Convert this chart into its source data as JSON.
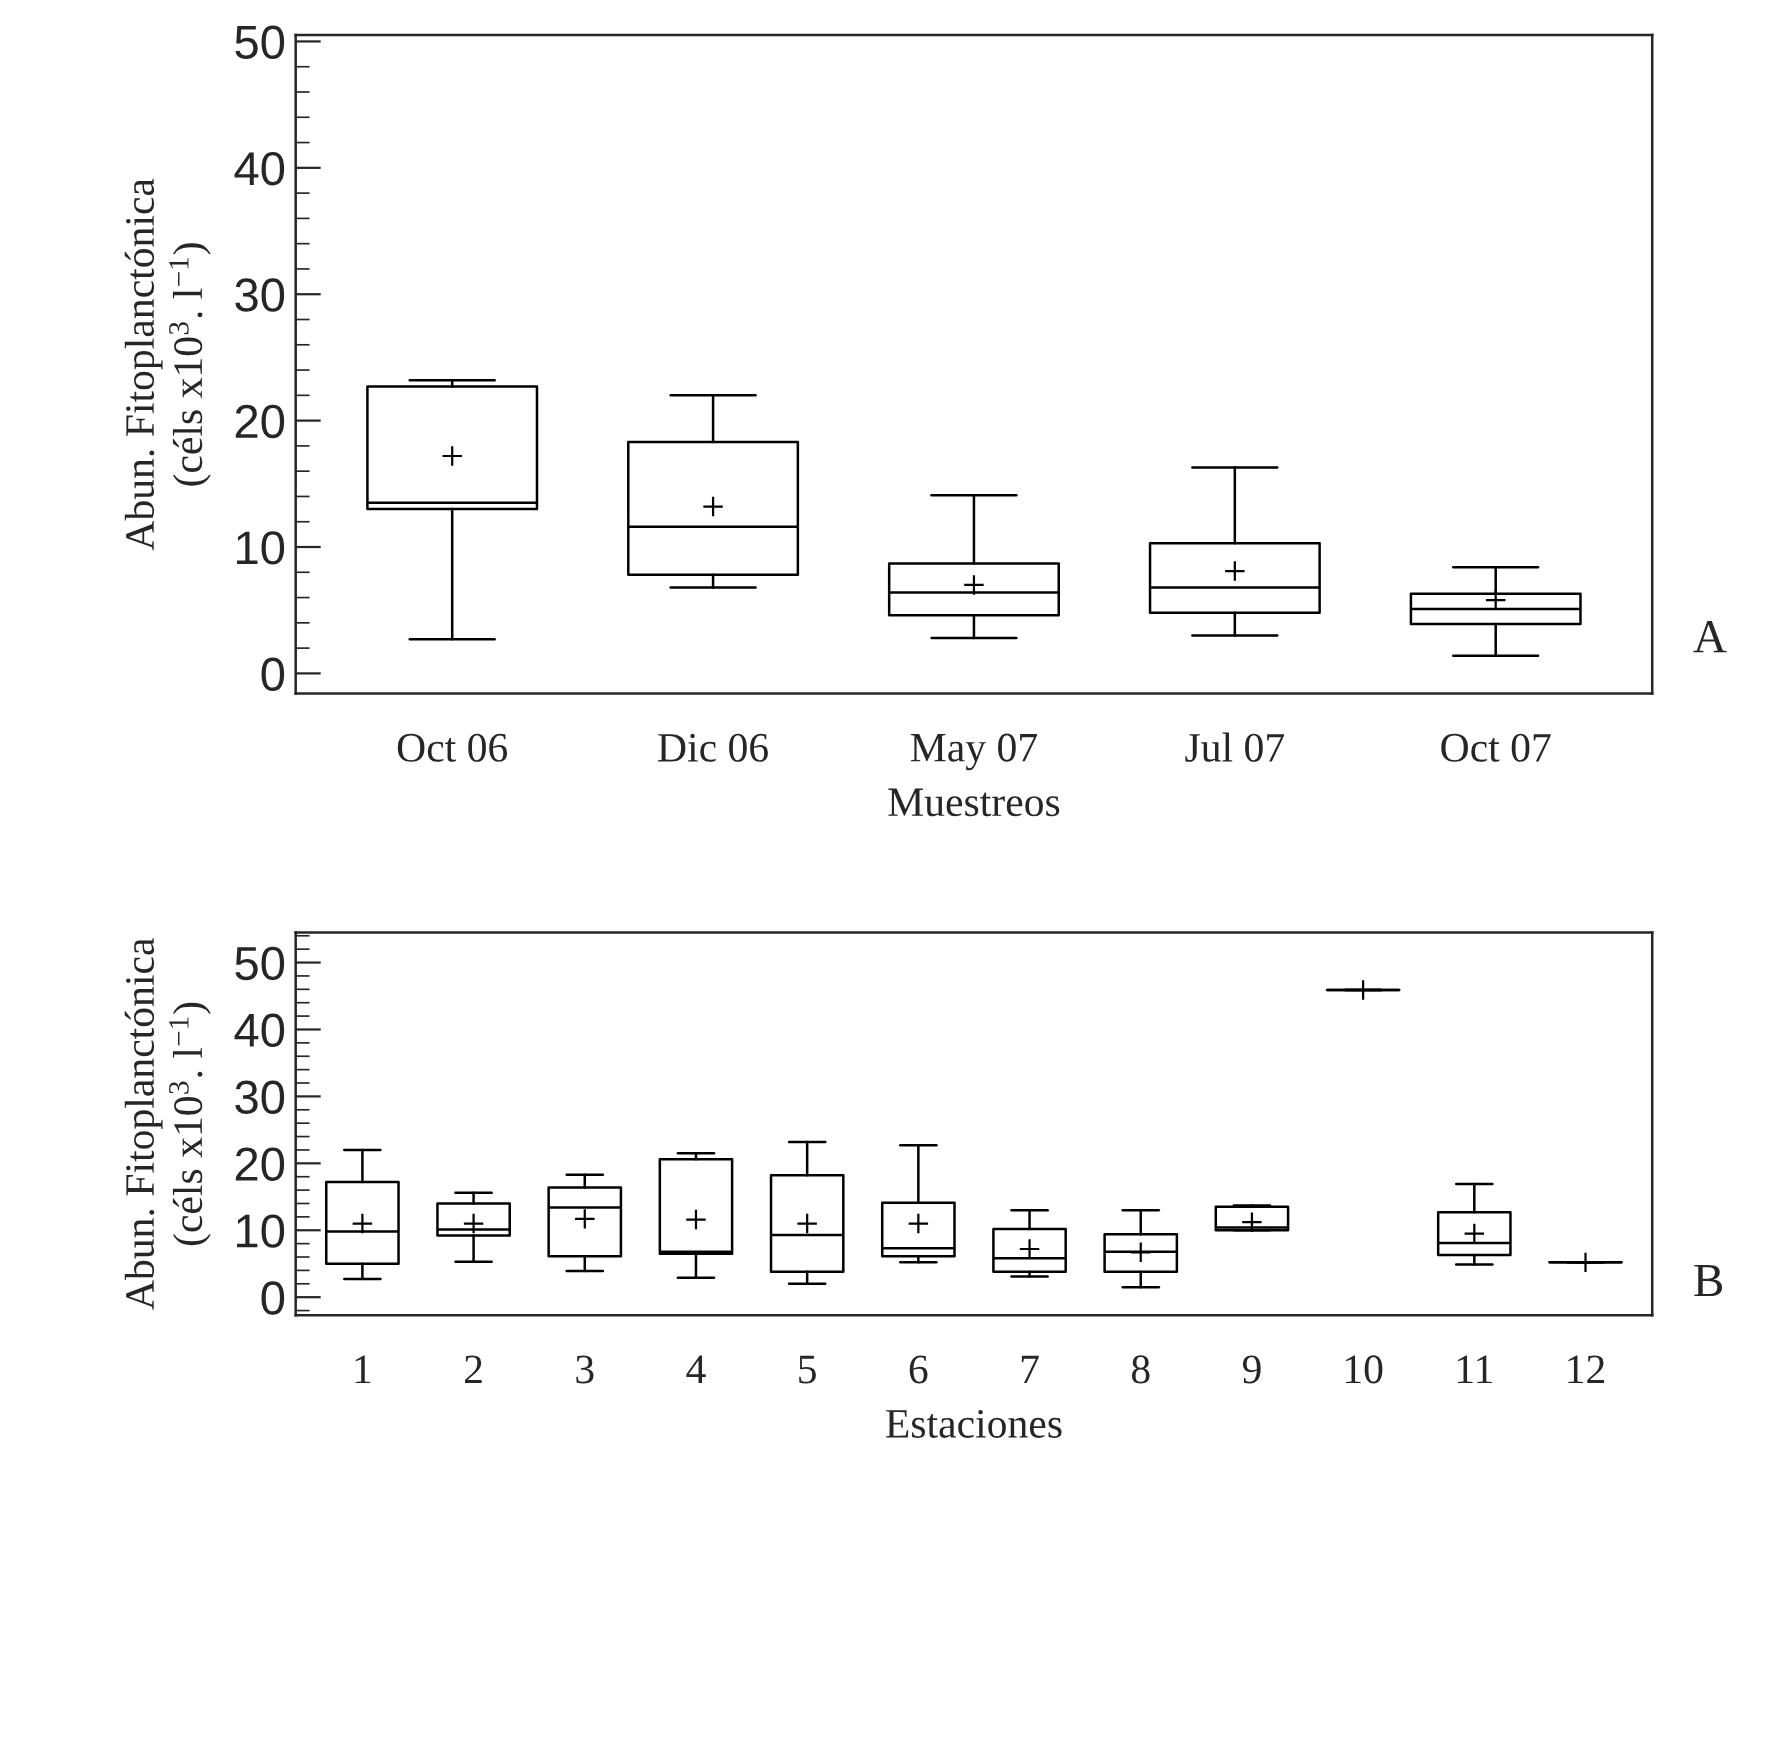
{
  "chart_data": [
    {
      "type": "box",
      "xlabel": "Muestreos",
      "ylabel": "Abun. Fitoplanctónica\n(céls x10$^{3}$. l$^{−1}$)",
      "categories": [
        "Oct 06",
        "Dic 06",
        "May 07",
        "Jul 07",
        "Oct 07"
      ],
      "ylim": [
        -1.6,
        50.5
      ],
      "yticks": [
        0,
        10,
        20,
        30,
        40,
        50
      ],
      "annotations": [
        "A"
      ],
      "boxes": [
        {
          "low": 2.7,
          "q1": 13.0,
          "median": 13.5,
          "q3": 22.7,
          "high": 23.2,
          "mean": 17.2
        },
        {
          "low": 6.8,
          "q1": 7.8,
          "median": 11.6,
          "q3": 18.3,
          "high": 22.0,
          "mean": 13.2
        },
        {
          "low": 2.8,
          "q1": 4.6,
          "median": 6.4,
          "q3": 8.7,
          "high": 14.1,
          "mean": 7.0
        },
        {
          "low": 3.0,
          "q1": 4.8,
          "median": 6.8,
          "q3": 10.3,
          "high": 16.3,
          "mean": 8.1
        },
        {
          "low": 1.4,
          "q1": 3.9,
          "median": 5.1,
          "q3": 6.3,
          "high": 8.4,
          "mean": 5.8
        }
      ]
    },
    {
      "type": "box",
      "xlabel": "Estaciones",
      "ylabel": "Abun. Fitoplanctónica\n(céls x10$^{3}$. l$^{−1}$)",
      "categories": [
        "1",
        "2",
        "3",
        "4",
        "5",
        "6",
        "7",
        "8",
        "9",
        "10",
        "11",
        "12"
      ],
      "ylim": [
        -2.7,
        54.5
      ],
      "yticks": [
        0,
        10,
        20,
        30,
        40,
        50
      ],
      "annotations": [
        "B"
      ],
      "boxes": [
        {
          "low": 2.7,
          "q1": 5.0,
          "median": 9.8,
          "q3": 17.2,
          "high": 22.0,
          "mean": 11.0
        },
        {
          "low": 5.3,
          "q1": 9.2,
          "median": 10.1,
          "q3": 14.0,
          "high": 15.6,
          "mean": 11.0
        },
        {
          "low": 3.9,
          "q1": 6.1,
          "median": 13.4,
          "q3": 16.4,
          "high": 18.3,
          "mean": 11.7
        },
        {
          "low": 2.9,
          "q1": 6.5,
          "median": 6.8,
          "q3": 20.6,
          "high": 21.5,
          "mean": 11.6
        },
        {
          "low": 2.0,
          "q1": 3.8,
          "median": 9.3,
          "q3": 18.2,
          "high": 23.2,
          "mean": 11.0
        },
        {
          "low": 5.2,
          "q1": 6.1,
          "median": 7.3,
          "q3": 14.1,
          "high": 22.7,
          "mean": 11.0
        },
        {
          "low": 3.1,
          "q1": 3.8,
          "median": 5.8,
          "q3": 10.2,
          "high": 13.0,
          "mean": 7.2
        },
        {
          "low": 1.5,
          "q1": 3.8,
          "median": 6.8,
          "q3": 9.4,
          "high": 13.0,
          "mean": 6.7
        },
        {
          "low": 10.0,
          "q1": 10.0,
          "median": 10.4,
          "q3": 13.5,
          "high": 13.7,
          "mean": 11.2
        },
        {
          "low": 45.9,
          "q1": 45.9,
          "median": 45.9,
          "q3": 45.9,
          "high": 45.9,
          "mean": 45.9
        },
        {
          "low": 4.9,
          "q1": 6.3,
          "median": 8.1,
          "q3": 12.7,
          "high": 16.9,
          "mean": 9.5
        },
        {
          "low": 5.2,
          "q1": 5.2,
          "median": 5.2,
          "q3": 5.2,
          "high": 5.2,
          "mean": 5.2
        }
      ]
    }
  ]
}
